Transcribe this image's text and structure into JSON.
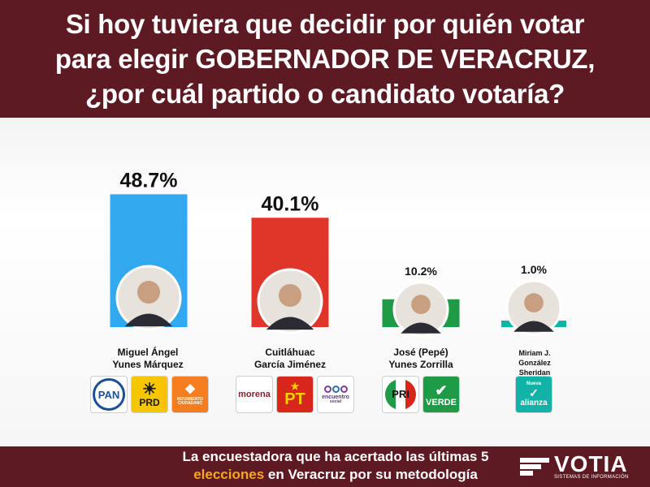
{
  "header": {
    "line1": "Si hoy tuviera que decidir por quién votar",
    "line2": "para elegir GOBERNADOR DE VERACRUZ,",
    "line3": "¿por cuál partido o candidato votaría?"
  },
  "chart_data": {
    "type": "bar",
    "title": "Si hoy tuviera que decidir por quién votar para elegir GOBERNADOR DE VERACRUZ, ¿por cuál partido o candidato votaría?",
    "categories": [
      "Miguel Ángel Yunes Márquez",
      "Cuitláhuac García Jiménez",
      "José (Pepé) Yunes Zorrilla",
      "Miriam J. González Sheridan"
    ],
    "values": [
      48.7,
      40.1,
      10.2,
      1.0
    ],
    "value_labels": [
      "48.7%",
      "40.1%",
      "10.2%",
      "1.0%"
    ],
    "colors": [
      "#32a8ee",
      "#e0362a",
      "#1f9a46",
      "#10b3a6"
    ],
    "ylim": [
      0,
      50
    ],
    "xlabel": "",
    "ylabel": "",
    "grid": false
  },
  "candidates": [
    {
      "name_line1": "Miguel Ángel",
      "name_line2": "Yunes Márquez",
      "name_line3": ""
    },
    {
      "name_line1": "Cuitláhuac",
      "name_line2": "García Jiménez",
      "name_line3": ""
    },
    {
      "name_line1": "José (Pepé)",
      "name_line2": "Yunes Zorrilla",
      "name_line3": ""
    },
    {
      "name_line1": "Miriam J.",
      "name_line2": "González",
      "name_line3": "Sheridan"
    }
  ],
  "parties": {
    "pan": "PAN",
    "prd": "PRD",
    "mc": "MOVIMIENTO CIUDADANO",
    "morena": "morena",
    "pt": "PT",
    "pes_line1": "encuentro",
    "pes_line2": "social",
    "pri": "PRI",
    "verde": "VERDE",
    "alianza_top": "Nueva",
    "alianza": "alianza"
  },
  "footer": {
    "tagline_line1": "La encuestadora que ha acertado las últimas 5",
    "tagline_word": "elecciones",
    "tagline_rest": " en Veracruz por su metodología",
    "brand": "VOTIA",
    "brand_sub": "SISTEMAS DE INFORMACIÓN"
  }
}
